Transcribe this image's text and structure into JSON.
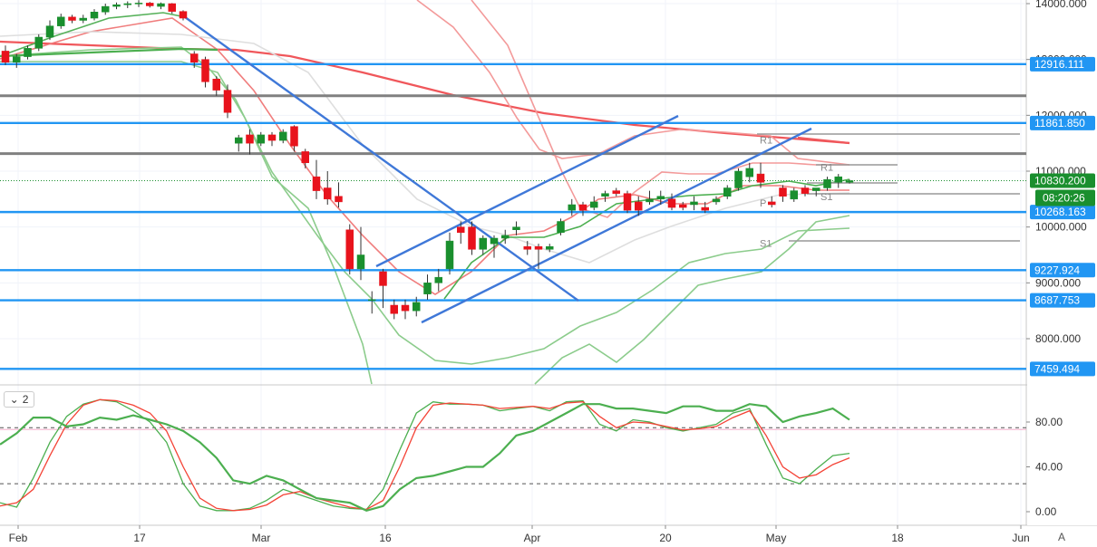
{
  "chart_data": [
    {
      "type": "candlestick",
      "ylim": [
        7400,
        14050
      ],
      "y_ticks": [
        "14000.000",
        "13000.000",
        "12000.000",
        "11000.000",
        "10000.000",
        "9000.000",
        "8000.000"
      ],
      "x_ticks": [
        "Feb",
        "17",
        "Mar",
        "16",
        "Apr",
        "20",
        "May",
        "18",
        "Jun"
      ],
      "horizontal_levels": [
        {
          "value": 12916.111,
          "label": "12916.111",
          "color": "#2196f3"
        },
        {
          "value": 11861.85,
          "label": "11861.850",
          "color": "#2196f3"
        },
        {
          "value": 10268.163,
          "label": "10268.163",
          "color": "#2196f3"
        },
        {
          "value": 9227.924,
          "label": "9227.924",
          "color": "#2196f3"
        },
        {
          "value": 8687.753,
          "label": "8687.753",
          "color": "#2196f3"
        },
        {
          "value": 7459.494,
          "label": "7459.494",
          "color": "#2196f3"
        },
        {
          "value": 12350,
          "color": "#808080"
        },
        {
          "value": 11315,
          "color": "#808080"
        }
      ],
      "current_price": {
        "value": 10830.2,
        "label": "10830.200",
        "countdown": "08:20:26",
        "color": "#1a8f2e"
      },
      "pivot_labels": [
        {
          "label": "R1",
          "value": 11560
        },
        {
          "label": "R1",
          "value": 11070
        },
        {
          "label": "P",
          "value": 10430
        },
        {
          "label": "S1",
          "value": 10550
        },
        {
          "label": "S1",
          "value": 9710
        }
      ],
      "series": [
        {
          "name": "candles",
          "ohlc": [
            [
              "Jan 31",
              13150,
              13250,
              12900,
              12950
            ],
            [
              "Feb 03",
              12950,
              13100,
              12850,
              13050
            ],
            [
              "Feb 04",
              13050,
              13250,
              13000,
              13200
            ],
            [
              "Feb 05",
              13200,
              13450,
              13150,
              13400
            ],
            [
              "Feb 06",
              13400,
              13700,
              13350,
              13600
            ],
            [
              "Feb 07",
              13600,
              13820,
              13550,
              13760
            ],
            [
              "Feb 10",
              13760,
              13800,
              13650,
              13700
            ],
            [
              "Feb 11",
              13700,
              13800,
              13650,
              13740
            ],
            [
              "Feb 12",
              13740,
              13900,
              13700,
              13850
            ],
            [
              "Feb 13",
              13850,
              14000,
              13800,
              13950
            ],
            [
              "Feb 14",
              13950,
              14020,
              13900,
              13980
            ],
            [
              "Feb 17",
              13980,
              14040,
              13920,
              14000
            ],
            [
              "Feb 18",
              14000,
              14060,
              13940,
              14010
            ],
            [
              "Feb 19",
              14010,
              14030,
              13930,
              13960
            ],
            [
              "Feb 20",
              13950,
              14020,
              13900,
              14000
            ],
            [
              "Feb 21",
              14000,
              14010,
              13820,
              13860
            ],
            [
              "Feb 24",
              13860,
              13880,
              13700,
              13740
            ],
            [
              "Feb 25",
              13100,
              13150,
              12850,
              12950
            ],
            [
              "Feb 26",
              13000,
              13050,
              12500,
              12600
            ],
            [
              "Feb 27",
              12650,
              12700,
              12350,
              12450
            ],
            [
              "Feb 28",
              12450,
              12550,
              11950,
              12050
            ],
            [
              "Mar 02",
              11500,
              11650,
              11350,
              11600
            ],
            [
              "Mar 03",
              11650,
              11750,
              11300,
              11500
            ],
            [
              "Mar 04",
              11500,
              11700,
              11450,
              11650
            ],
            [
              "Mar 05",
              11650,
              11700,
              11450,
              11550
            ],
            [
              "Mar 06",
              11550,
              11750,
              11500,
              11700
            ],
            [
              "Mar 09",
              11800,
              11820,
              11350,
              11450
            ],
            [
              "Mar 10",
              11350,
              11400,
              11050,
              11150
            ],
            [
              "Mar 11",
              10900,
              11200,
              10500,
              10650
            ],
            [
              "Mar 12",
              10700,
              11000,
              10400,
              10500
            ],
            [
              "Mar 13",
              10550,
              10800,
              10350,
              10450
            ],
            [
              "Mar 16",
              9950,
              10050,
              9150,
              9250
            ],
            [
              "Mar 17",
              9250,
              10000,
              9050,
              9500
            ],
            [
              "Mar 18",
              8700,
              8850,
              8450,
              8700
            ],
            [
              "Mar 19",
              9200,
              9250,
              8550,
              8950
            ],
            [
              "Mar 20",
              8600,
              8700,
              8350,
              8450
            ],
            [
              "Mar 23",
              8600,
              8700,
              8350,
              8500
            ],
            [
              "Mar 24",
              8500,
              8750,
              8400,
              8650
            ],
            [
              "Mar 25",
              8800,
              9150,
              8700,
              9000
            ],
            [
              "Mar 26",
              9000,
              9250,
              8850,
              9100
            ],
            [
              "Mar 27",
              9250,
              9900,
              9150,
              9750
            ],
            [
              "Mar 30",
              10000,
              10100,
              9700,
              9900
            ],
            [
              "Mar 31",
              10000,
              10100,
              9500,
              9600
            ],
            [
              "Apr 01",
              9600,
              9850,
              9500,
              9800
            ],
            [
              "Apr 02",
              9700,
              9850,
              9450,
              9800
            ],
            [
              "Apr 03",
              9800,
              9950,
              9700,
              9850
            ],
            [
              "Apr 06",
              9950,
              10100,
              9850,
              10000
            ],
            [
              "Apr 07",
              9650,
              9750,
              9500,
              9600
            ],
            [
              "Apr 08",
              9650,
              9700,
              9250,
              9600
            ],
            [
              "Apr 09",
              9600,
              9700,
              9550,
              9650
            ],
            [
              "Apr 13",
              9900,
              10150,
              9850,
              10100
            ],
            [
              "Apr 14",
              10300,
              10500,
              10200,
              10400
            ],
            [
              "Apr 15",
              10400,
              10450,
              10200,
              10300
            ],
            [
              "Apr 16",
              10350,
              10550,
              10300,
              10450
            ],
            [
              "Apr 17",
              10550,
              10650,
              10450,
              10600
            ],
            [
              "Apr 20",
              10650,
              10700,
              10550,
              10600
            ],
            [
              "Apr 21",
              10600,
              10650,
              10250,
              10300
            ],
            [
              "Apr 22",
              10450,
              10550,
              10200,
              10300
            ],
            [
              "Apr 23",
              10450,
              10650,
              10400,
              10500
            ],
            [
              "Apr 24",
              10500,
              10650,
              10400,
              10550
            ],
            [
              "Apr 27",
              10500,
              10600,
              10300,
              10350
            ],
            [
              "Apr 28",
              10400,
              10450,
              10300,
              10350
            ],
            [
              "Apr 29",
              10400,
              10550,
              10300,
              10450
            ],
            [
              "Apr 30",
              10350,
              10450,
              10250,
              10300
            ],
            [
              "May 01",
              10450,
              10550,
              10400,
              10500
            ],
            [
              "May 04",
              10550,
              10750,
              10500,
              10700
            ],
            [
              "May 05",
              10700,
              11050,
              10650,
              11000
            ],
            [
              "May 06",
              10900,
              11150,
              10800,
              11050
            ],
            [
              "May 07",
              10950,
              11150,
              10700,
              10800
            ],
            [
              "May 08",
              10450,
              10550,
              10350,
              10400
            ],
            [
              "May 11",
              10700,
              10750,
              10450,
              10550
            ],
            [
              "May 12",
              10500,
              10700,
              10450,
              10650
            ],
            [
              "May 13",
              10700,
              10750,
              10550,
              10600
            ],
            [
              "May 14",
              10650,
              10700,
              10550,
              10700
            ],
            [
              "May 15",
              10700,
              10900,
              10650,
              10850
            ],
            [
              "May 18",
              10800,
              10950,
              10700,
              10900
            ],
            [
              "May 19",
              10800,
              10850,
              10780,
              10830
            ]
          ]
        }
      ]
    },
    {
      "type": "line",
      "name": "stochastic",
      "ylim": [
        -5,
        112
      ],
      "y_ticks": [
        "80.00",
        "40.00",
        "0.00"
      ],
      "dashed_levels": [
        75,
        25
      ],
      "series": [
        {
          "name": "k-fast",
          "color": "#4caf50",
          "values": [
            8,
            4,
            30,
            62,
            85,
            96,
            100,
            98,
            90,
            80,
            62,
            25,
            5,
            1,
            1,
            3,
            10,
            20,
            15,
            10,
            5,
            3,
            2,
            20,
            55,
            88,
            98,
            96,
            96,
            95,
            90,
            92,
            94,
            90,
            98,
            99,
            78,
            72,
            82,
            80,
            75,
            72,
            75,
            78,
            88,
            92,
            60,
            30,
            25,
            38,
            50,
            52
          ]
        },
        {
          "name": "d-slow",
          "color": "#f44336",
          "values": [
            5,
            8,
            20,
            50,
            78,
            95,
            100,
            99,
            95,
            88,
            72,
            40,
            12,
            3,
            1,
            2,
            6,
            15,
            18,
            12,
            8,
            4,
            2,
            10,
            40,
            75,
            95,
            97,
            96,
            95,
            92,
            93,
            94,
            92,
            97,
            98,
            85,
            75,
            80,
            79,
            76,
            73,
            74,
            76,
            84,
            90,
            68,
            40,
            30,
            33,
            42,
            48
          ]
        },
        {
          "name": "rsi",
          "color": "#4caf50",
          "values": [
            60,
            70,
            84,
            84,
            76,
            78,
            84,
            82,
            86,
            82,
            78,
            72,
            62,
            48,
            28,
            25,
            32,
            28,
            20,
            12,
            10,
            8,
            1,
            5,
            20,
            30,
            32,
            36,
            40,
            40,
            52,
            68,
            72,
            80,
            88,
            96,
            96,
            92,
            92,
            90,
            88,
            94,
            94,
            90,
            90,
            96,
            94,
            80,
            85,
            88,
            92,
            82
          ]
        }
      ]
    }
  ]
}
